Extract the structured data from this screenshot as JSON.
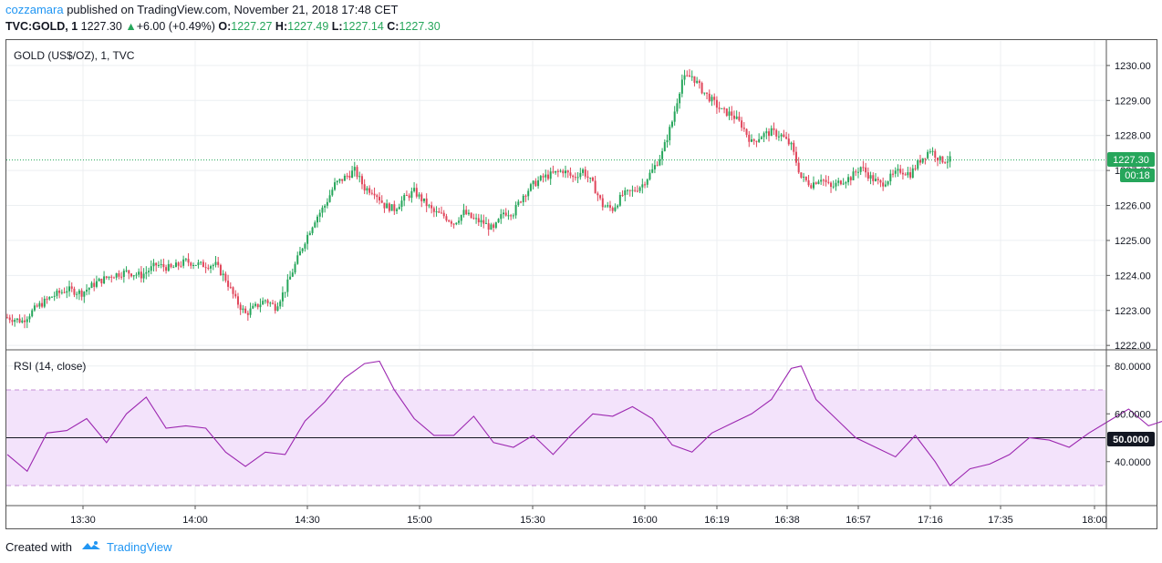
{
  "header": {
    "author": "cozzamara",
    "published_text": " published on TradingView.com, November 21, 2018 17:48 CET",
    "symbol": "TVC:GOLD, 1",
    "last": "1227.30",
    "change_arrow": "▲",
    "change": "+6.00 (+0.49%)",
    "open_label": "O:",
    "open": "1227.27",
    "high_label": "H:",
    "high": "1227.49",
    "low_label": "L:",
    "low": "1227.14",
    "close_label": "C:",
    "close": "1227.30"
  },
  "footer": {
    "created_with": "Created with",
    "brand": "TradingView"
  },
  "colors": {
    "up": "#26a65b",
    "down": "#e0455a",
    "rsi_line": "#9c27b0",
    "rsi_band": "#f3e3fb",
    "last_price": "#26a65b"
  },
  "chart_data": [
    {
      "type": "candlestick",
      "title": "GOLD (US$/OZ), 1, TVC",
      "ylim": [
        1221.9,
        1230.7
      ],
      "y_ticks": [
        "1230.00",
        "1229.00",
        "1228.00",
        "1227.00",
        "1226.00",
        "1225.00",
        "1224.00",
        "1223.00",
        "1222.00"
      ],
      "x_ticks": [
        "13:30",
        "14:00",
        "14:30",
        "15:00",
        "15:30",
        "16:00",
        "16:19",
        "16:38",
        "16:57",
        "17:16",
        "17:35",
        "18:00"
      ],
      "last_price_label": "1227.30",
      "countdown_label": "00:18",
      "close_path": [
        [
          0,
          1222.8
        ],
        [
          6,
          1222.7
        ],
        [
          12,
          1223.1
        ],
        [
          18,
          1223.4
        ],
        [
          24,
          1223.6
        ],
        [
          30,
          1223.5
        ],
        [
          36,
          1223.8
        ],
        [
          42,
          1224.0
        ],
        [
          48,
          1224.1
        ],
        [
          54,
          1224.0
        ],
        [
          60,
          1224.3
        ],
        [
          66,
          1224.2
        ],
        [
          72,
          1224.4
        ],
        [
          78,
          1224.3
        ],
        [
          84,
          1224.3
        ],
        [
          88,
          1223.9
        ],
        [
          92,
          1223.3
        ],
        [
          96,
          1222.9
        ],
        [
          100,
          1223.1
        ],
        [
          104,
          1223.3
        ],
        [
          108,
          1223.1
        ],
        [
          112,
          1223.6
        ],
        [
          116,
          1224.3
        ],
        [
          120,
          1225.0
        ],
        [
          124,
          1225.6
        ],
        [
          128,
          1226.0
        ],
        [
          132,
          1226.6
        ],
        [
          136,
          1226.8
        ],
        [
          140,
          1227.0
        ],
        [
          144,
          1226.5
        ],
        [
          148,
          1226.4
        ],
        [
          152,
          1226.0
        ],
        [
          156,
          1225.9
        ],
        [
          160,
          1226.2
        ],
        [
          164,
          1226.4
        ],
        [
          168,
          1226.1
        ],
        [
          172,
          1225.8
        ],
        [
          176,
          1225.7
        ],
        [
          180,
          1225.5
        ],
        [
          184,
          1225.8
        ],
        [
          188,
          1225.6
        ],
        [
          192,
          1225.5
        ],
        [
          196,
          1225.3
        ],
        [
          200,
          1225.8
        ],
        [
          204,
          1225.8
        ],
        [
          208,
          1226.3
        ],
        [
          212,
          1226.6
        ],
        [
          216,
          1226.8
        ],
        [
          220,
          1226.9
        ],
        [
          224,
          1227.0
        ],
        [
          228,
          1226.8
        ],
        [
          232,
          1227.0
        ],
        [
          236,
          1226.6
        ],
        [
          240,
          1226.0
        ],
        [
          244,
          1225.9
        ],
        [
          248,
          1226.3
        ],
        [
          252,
          1226.4
        ],
        [
          256,
          1226.6
        ],
        [
          260,
          1227.0
        ],
        [
          264,
          1227.5
        ],
        [
          268,
          1228.4
        ],
        [
          272,
          1229.6
        ],
        [
          276,
          1229.7
        ],
        [
          280,
          1229.3
        ],
        [
          284,
          1229.0
        ],
        [
          288,
          1228.7
        ],
        [
          292,
          1228.6
        ],
        [
          296,
          1228.3
        ],
        [
          300,
          1227.8
        ],
        [
          304,
          1228.0
        ],
        [
          308,
          1228.1
        ],
        [
          312,
          1228.0
        ],
        [
          316,
          1227.7
        ],
        [
          320,
          1226.8
        ],
        [
          324,
          1226.6
        ],
        [
          328,
          1226.8
        ],
        [
          332,
          1226.5
        ],
        [
          336,
          1226.7
        ],
        [
          340,
          1226.8
        ],
        [
          344,
          1227.1
        ],
        [
          348,
          1226.8
        ],
        [
          352,
          1226.6
        ],
        [
          356,
          1226.8
        ],
        [
          360,
          1227.0
        ],
        [
          364,
          1226.9
        ],
        [
          368,
          1227.3
        ],
        [
          372,
          1227.6
        ],
        [
          376,
          1227.3
        ],
        [
          380,
          1227.3
        ]
      ]
    },
    {
      "type": "line",
      "title": "RSI (14, close)",
      "ylim": [
        22,
        86
      ],
      "y_ticks": [
        "80.0000",
        "60.0000",
        "40.0000"
      ],
      "band": [
        30,
        70
      ],
      "midline": 50,
      "midline_label": "50.0000",
      "series": [
        [
          0,
          43
        ],
        [
          8,
          36
        ],
        [
          16,
          52
        ],
        [
          24,
          53
        ],
        [
          32,
          58
        ],
        [
          40,
          48
        ],
        [
          48,
          60
        ],
        [
          56,
          67
        ],
        [
          64,
          54
        ],
        [
          72,
          55
        ],
        [
          80,
          54
        ],
        [
          88,
          44
        ],
        [
          96,
          38
        ],
        [
          104,
          44
        ],
        [
          112,
          43
        ],
        [
          120,
          57
        ],
        [
          128,
          65
        ],
        [
          136,
          75
        ],
        [
          144,
          81
        ],
        [
          150,
          82
        ],
        [
          156,
          70
        ],
        [
          164,
          58
        ],
        [
          172,
          51
        ],
        [
          180,
          51
        ],
        [
          188,
          59
        ],
        [
          196,
          48
        ],
        [
          204,
          46
        ],
        [
          212,
          51
        ],
        [
          220,
          43
        ],
        [
          228,
          52
        ],
        [
          236,
          60
        ],
        [
          244,
          59
        ],
        [
          252,
          63
        ],
        [
          260,
          58
        ],
        [
          268,
          47
        ],
        [
          276,
          44
        ],
        [
          284,
          52
        ],
        [
          292,
          56
        ],
        [
          300,
          60
        ],
        [
          308,
          66
        ],
        [
          316,
          79
        ],
        [
          320,
          80
        ],
        [
          326,
          66
        ],
        [
          334,
          58
        ],
        [
          342,
          50
        ],
        [
          350,
          46
        ],
        [
          358,
          42
        ],
        [
          366,
          51
        ],
        [
          374,
          40
        ],
        [
          380,
          30
        ],
        [
          388,
          37
        ],
        [
          396,
          39
        ],
        [
          404,
          43
        ],
        [
          412,
          50
        ],
        [
          420,
          49
        ],
        [
          428,
          46
        ],
        [
          436,
          52
        ],
        [
          444,
          57
        ],
        [
          452,
          62
        ],
        [
          460,
          55
        ],
        [
          466,
          57
        ],
        [
          472,
          51
        ]
      ]
    }
  ]
}
